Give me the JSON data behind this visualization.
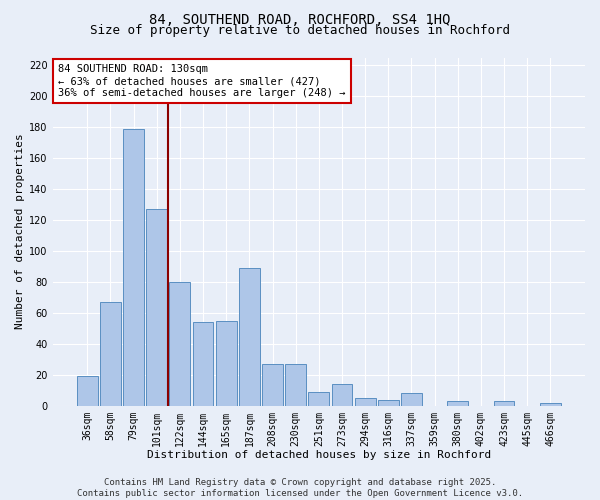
{
  "title1": "84, SOUTHEND ROAD, ROCHFORD, SS4 1HQ",
  "title2": "Size of property relative to detached houses in Rochford",
  "xlabel": "Distribution of detached houses by size in Rochford",
  "ylabel": "Number of detached properties",
  "categories": [
    "36sqm",
    "58sqm",
    "79sqm",
    "101sqm",
    "122sqm",
    "144sqm",
    "165sqm",
    "187sqm",
    "208sqm",
    "230sqm",
    "251sqm",
    "273sqm",
    "294sqm",
    "316sqm",
    "337sqm",
    "359sqm",
    "380sqm",
    "402sqm",
    "423sqm",
    "445sqm",
    "466sqm"
  ],
  "values": [
    19,
    67,
    179,
    127,
    80,
    54,
    55,
    89,
    27,
    27,
    9,
    14,
    5,
    4,
    8,
    0,
    3,
    0,
    3,
    0,
    2
  ],
  "bar_color": "#aec6e8",
  "bar_edge_color": "#5a8fc2",
  "background_color": "#e8eef8",
  "grid_color": "#ffffff",
  "vline_x_index": 3.5,
  "vline_color": "#8b0000",
  "annotation_text": "84 SOUTHEND ROAD: 130sqm\n← 63% of detached houses are smaller (427)\n36% of semi-detached houses are larger (248) →",
  "annotation_box_color": "#ffffff",
  "annotation_box_edge_color": "#cc0000",
  "ylim": [
    0,
    225
  ],
  "yticks": [
    0,
    20,
    40,
    60,
    80,
    100,
    120,
    140,
    160,
    180,
    200,
    220
  ],
  "footer_text": "Contains HM Land Registry data © Crown copyright and database right 2025.\nContains public sector information licensed under the Open Government Licence v3.0.",
  "title_fontsize": 10,
  "subtitle_fontsize": 9,
  "axis_label_fontsize": 8,
  "tick_fontsize": 7,
  "annotation_fontsize": 7.5,
  "footer_fontsize": 6.5
}
